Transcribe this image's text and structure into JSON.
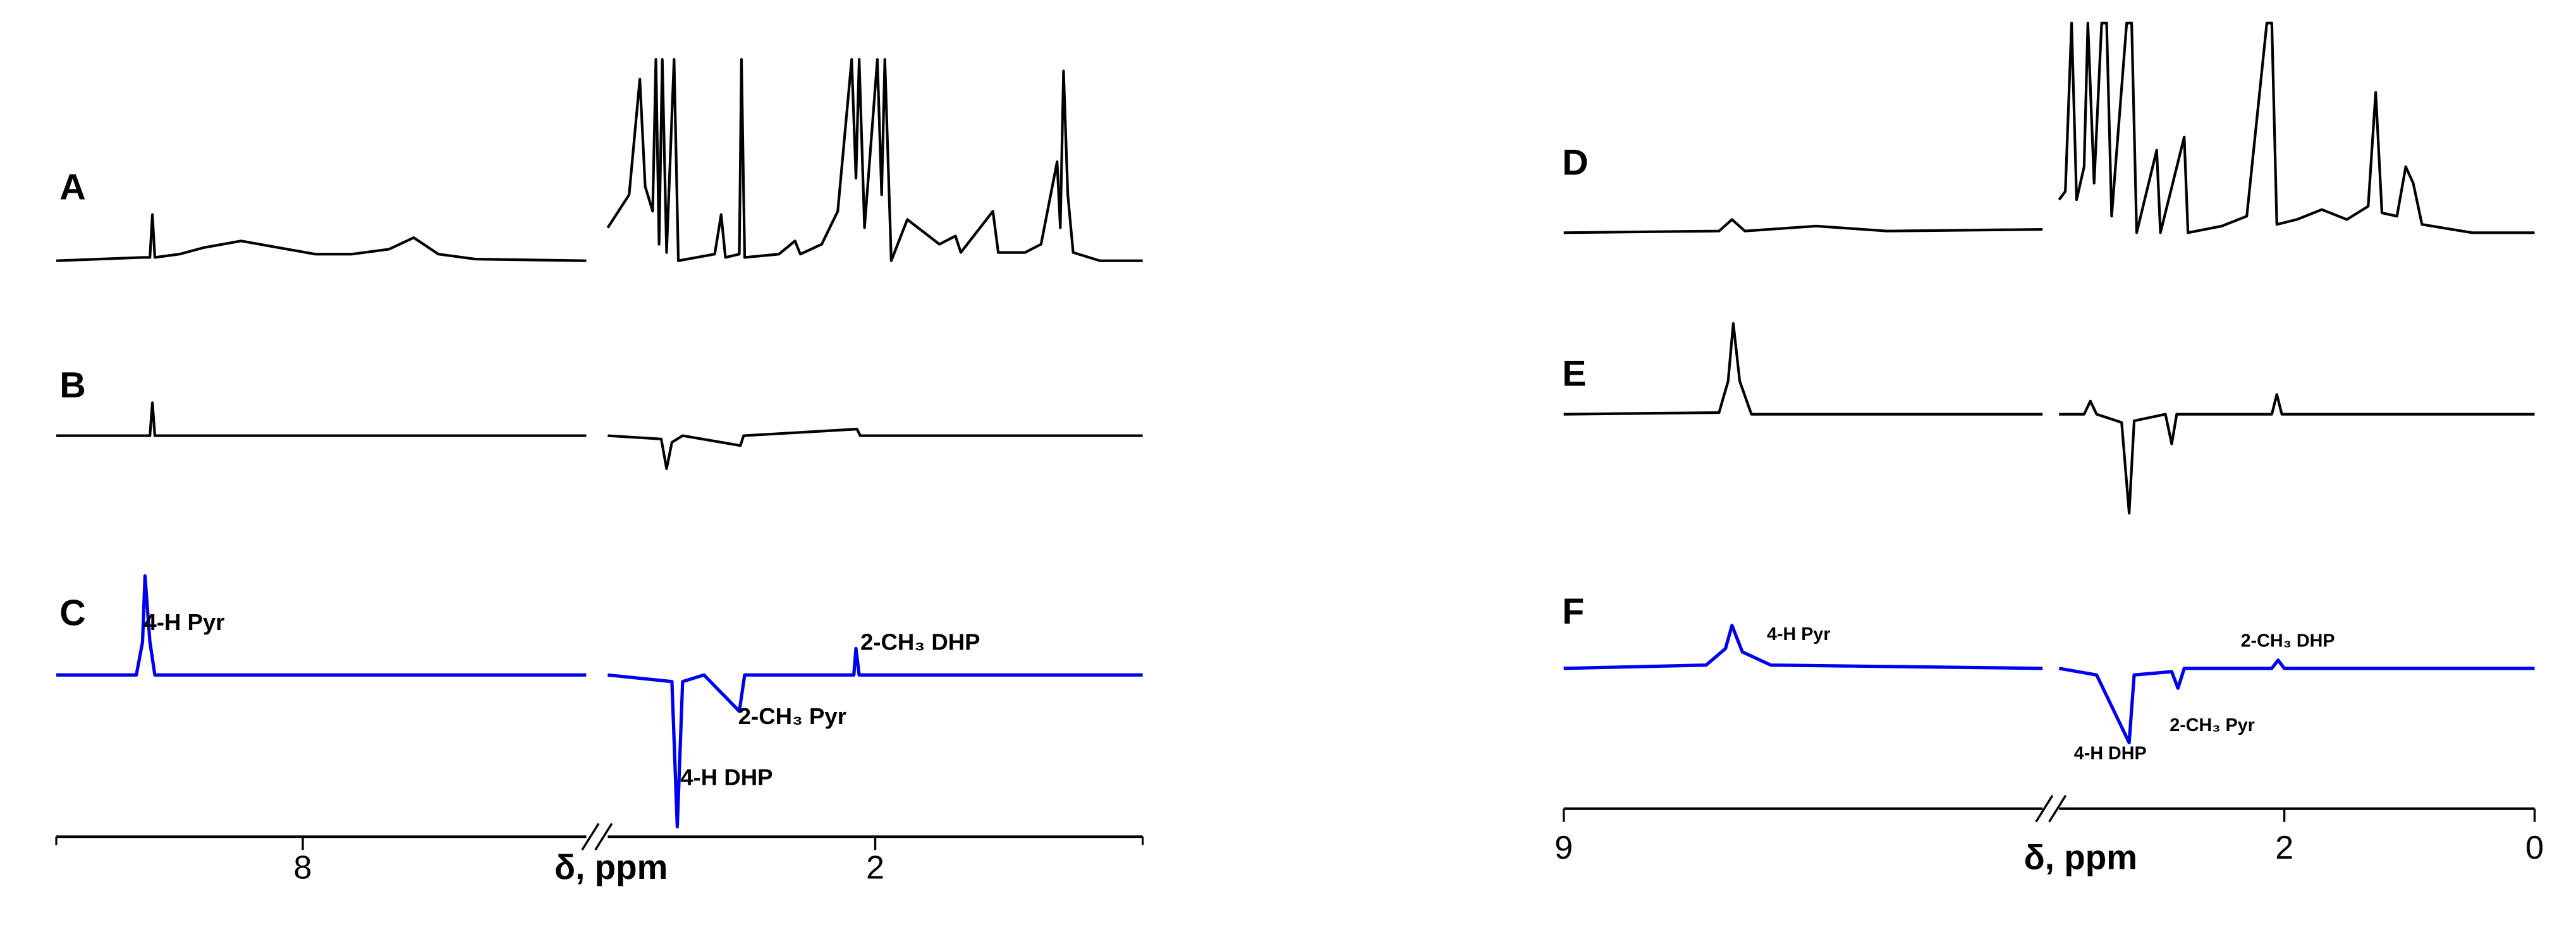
{
  "chart_data": [
    {
      "type": "line",
      "x_label": "δ, ppm",
      "x_segments": [
        [
          10,
          5.7
        ],
        [
          4.5,
          -0.5
        ]
      ],
      "xticks": [
        8,
        2
      ],
      "series": [
        {
          "name": "A",
          "color": "#000000",
          "segments": [
            {
              "x": [
                10,
                9.3,
                9.24,
                9.22,
                9.2,
                9.0,
                8.8,
                8.5,
                8.2,
                7.9,
                7.6,
                7.3,
                7.1,
                6.9,
                6.6,
                5.7
              ],
              "values": [
                0,
                2,
                2,
                28,
                2,
                4,
                8,
                12,
                8,
                4,
                4,
                7,
                14,
                4,
                1,
                0
              ]
            },
            {
              "x": [
                4.5,
                4.4,
                4.3,
                4.2,
                4.15,
                4.08,
                4.05,
                4.02,
                3.99,
                3.95,
                3.88,
                3.84,
                3.5,
                3.44,
                3.4,
                3.27,
                3.25,
                3.22,
                2.9,
                2.75,
                2.7,
                2.5,
                2.35,
                2.22,
                2.18,
                2.15,
                2.1,
                1.98,
                1.94,
                1.91,
                1.85,
                1.7,
                1.6,
                1.4,
                1.25,
                1.2,
                0.9,
                0.85,
                0.6,
                0.45,
                0.3,
                0.27,
                0.24,
                0.2,
                0.15,
                -0.1,
                -0.5
              ],
              "values": [
                20,
                30,
                40,
                110,
                45,
                30,
                122,
                10,
                122,
                5,
                122,
                0,
                4,
                28,
                2,
                4,
                122,
                2,
                4,
                12,
                4,
                10,
                30,
                122,
                50,
                122,
                20,
                122,
                40,
                122,
                0,
                25,
                20,
                10,
                15,
                5,
                30,
                5,
                5,
                10,
                60,
                20,
                115,
                40,
                5,
                0,
                0
              ]
            }
          ]
        },
        {
          "name": "B",
          "color": "#000000",
          "segments": [
            {
              "x": [
                10,
                9.24,
                9.22,
                9.2,
                5.7
              ],
              "values": [
                0,
                0,
                20,
                0,
                0
              ]
            },
            {
              "x": [
                4.5,
                4.0,
                3.95,
                3.9,
                3.8,
                3.26,
                3.23,
                2.17,
                2.14,
                -0.5
              ],
              "values": [
                0,
                -2,
                -20,
                -4,
                0,
                -6,
                0,
                4,
                0,
                0
              ]
            }
          ]
        },
        {
          "name": "C",
          "color": "#0000ee",
          "segments": [
            {
              "x": [
                10,
                9.35,
                9.3,
                9.28,
                9.24,
                9.2,
                5.7
              ],
              "values": [
                0,
                0,
                20,
                60,
                20,
                0,
                0
              ]
            },
            {
              "x": [
                4.5,
                3.9,
                3.85,
                3.8,
                3.6,
                3.27,
                3.22,
                2.2,
                2.18,
                2.15,
                -0.5
              ],
              "values": [
                0,
                -4,
                -92,
                -4,
                0,
                -22,
                0,
                0,
                16,
                0,
                0
              ]
            }
          ]
        }
      ],
      "annotations": [
        "4-H Pyr",
        "4-H DHP",
        "2-CH₃ Pyr",
        "2-CH₃ DHP"
      ]
    },
    {
      "type": "line",
      "x_label": "δ, ppm",
      "x_segments": [
        [
          9,
          5.3
        ],
        [
          3.8,
          0
        ]
      ],
      "xticks": [
        9,
        2,
        0
      ],
      "series": [
        {
          "name": "D",
          "color": "#000000",
          "segments": [
            {
              "x": [
                9,
                7.8,
                7.7,
                7.6,
                7.05,
                6.5,
                5.3
              ],
              "values": [
                0,
                1,
                8,
                1,
                4,
                1,
                2
              ]
            },
            {
              "x": [
                3.8,
                3.75,
                3.7,
                3.66,
                3.6,
                3.57,
                3.52,
                3.46,
                3.42,
                3.38,
                3.26,
                3.22,
                3.18,
                3.02,
                2.99,
                2.8,
                2.77,
                2.5,
                2.3,
                2.14,
                2.1,
                2.06,
                1.9,
                1.7,
                1.5,
                1.33,
                1.27,
                1.22,
                1.1,
                1.03,
                0.97,
                0.9,
                0.5,
                0
              ],
              "values": [
                20,
                25,
                127,
                20,
                40,
                127,
                30,
                127,
                127,
                10,
                127,
                127,
                0,
                50,
                0,
                58,
                0,
                4,
                10,
                127,
                127,
                5,
                8,
                14,
                8,
                16,
                85,
                12,
                10,
                40,
                30,
                5,
                0,
                0
              ]
            }
          ]
        },
        {
          "name": "E",
          "color": "#000000",
          "segments": [
            {
              "x": [
                9,
                7.8,
                7.73,
                7.69,
                7.64,
                7.55,
                5.3
              ],
              "values": [
                0,
                1,
                20,
                55,
                20,
                0,
                0
              ]
            },
            {
              "x": [
                3.8,
                3.6,
                3.55,
                3.5,
                3.3,
                3.24,
                3.2,
                2.95,
                2.9,
                2.86,
                2.1,
                2.06,
                2.02,
                0
              ],
              "values": [
                0,
                0,
                8,
                0,
                -5,
                -60,
                -4,
                0,
                -18,
                0,
                0,
                12,
                0,
                0
              ]
            }
          ]
        },
        {
          "name": "F",
          "color": "#0000ee",
          "segments": [
            {
              "x": [
                9,
                7.9,
                7.75,
                7.7,
                7.62,
                7.4,
                5.3
              ],
              "values": [
                0,
                2,
                12,
                26,
                10,
                2,
                0
              ]
            },
            {
              "x": [
                3.8,
                3.5,
                3.24,
                3.2,
                2.9,
                2.85,
                2.8,
                2.1,
                2.05,
                2.0,
                0
              ],
              "values": [
                0,
                -4,
                -45,
                -4,
                -2,
                -12,
                0,
                0,
                5,
                0,
                0
              ]
            }
          ]
        }
      ],
      "annotations": [
        "4-H Pyr",
        "4-H DHP",
        "2-CH₃ Pyr",
        "2-CH₃ DHP"
      ]
    }
  ]
}
